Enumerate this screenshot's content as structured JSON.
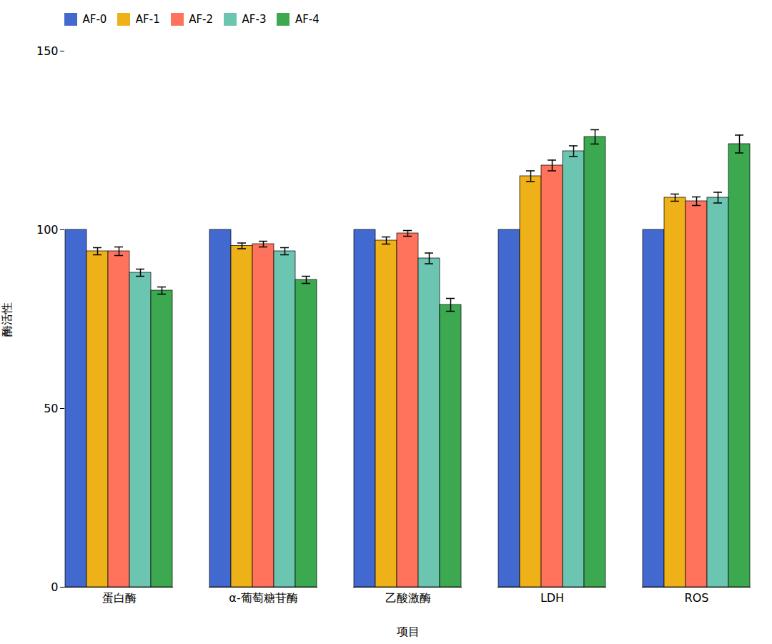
{
  "chart_data": {
    "type": "bar",
    "categories": [
      "蛋白酶",
      "α-葡萄糖苷酶",
      "乙酸激酶",
      "LDH",
      "ROS"
    ],
    "series": [
      {
        "name": "AF-0",
        "values": [
          100,
          100,
          100,
          100,
          100
        ],
        "errors": [
          0,
          0,
          0,
          0,
          0
        ]
      },
      {
        "name": "AF-1",
        "values": [
          94,
          95.5,
          97,
          115,
          109
        ],
        "errors": [
          1.0,
          0.8,
          1.0,
          1.5,
          1.0
        ]
      },
      {
        "name": "AF-2",
        "values": [
          94,
          96,
          99,
          118,
          108
        ],
        "errors": [
          1.2,
          0.8,
          0.8,
          1.5,
          1.2
        ]
      },
      {
        "name": "AF-3",
        "values": [
          88,
          94,
          92,
          122,
          109
        ],
        "errors": [
          1.0,
          1.0,
          1.5,
          1.5,
          1.5
        ]
      },
      {
        "name": "AF-4",
        "values": [
          83,
          86,
          79,
          126,
          124
        ],
        "errors": [
          1.0,
          1.0,
          1.8,
          2.0,
          2.5
        ]
      }
    ],
    "xlabel": "项目",
    "ylabel": "酶活性",
    "ylim": [
      0,
      150
    ],
    "yticks": [
      0,
      50,
      100,
      150
    ],
    "grid": false,
    "legend": "upper left"
  }
}
